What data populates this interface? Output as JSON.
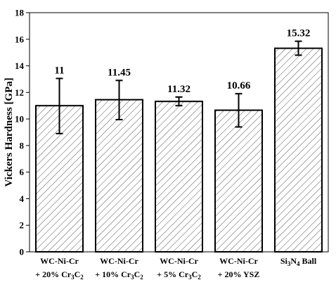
{
  "chart_data": {
    "type": "bar",
    "title": "",
    "xlabel": "",
    "ylabel": "Vickers Hardness [GPa]",
    "ylim": [
      0,
      18
    ],
    "yticks": [
      0,
      2,
      4,
      6,
      8,
      10,
      12,
      14,
      16,
      18
    ],
    "grid": false,
    "categories": [
      {
        "line1": "WC-Ni-Cr",
        "line2": [
          [
            "+ 20% Cr",
            ""
          ],
          [
            "3",
            "sub"
          ],
          [
            "C",
            ""
          ],
          [
            "2",
            "sub"
          ]
        ]
      },
      {
        "line1": "WC-Ni-Cr",
        "line2": [
          [
            "+ 10% Cr",
            ""
          ],
          [
            "3",
            "sub"
          ],
          [
            "C",
            ""
          ],
          [
            "2",
            "sub"
          ]
        ]
      },
      {
        "line1": "WC-Ni-Cr",
        "line2": [
          [
            "+ 5% Cr",
            ""
          ],
          [
            "3",
            "sub"
          ],
          [
            "C",
            ""
          ],
          [
            "2",
            "sub"
          ]
        ]
      },
      {
        "line1": "WC-Ni-Cr",
        "line2": [
          [
            "+ 20% YSZ",
            ""
          ]
        ]
      },
      {
        "line1": [
          [
            "Si",
            ""
          ],
          [
            "3",
            "sub"
          ],
          [
            "N",
            ""
          ],
          [
            "4",
            "sub"
          ],
          [
            " Ball",
            ""
          ]
        ],
        "line2": null
      }
    ],
    "values": [
      11,
      11.45,
      11.32,
      10.66,
      15.32
    ],
    "value_labels": [
      "11",
      "11.45",
      "11.32",
      "10.66",
      "15.32"
    ],
    "error_low": [
      8.9,
      9.95,
      11.0,
      9.4,
      14.8
    ],
    "error_high": [
      13.05,
      12.9,
      11.65,
      11.9,
      15.85
    ],
    "bar_fill": "hatched",
    "colors": {
      "bar_stroke": "#000000",
      "hatch": "#555555",
      "background": "#ffffff"
    }
  }
}
